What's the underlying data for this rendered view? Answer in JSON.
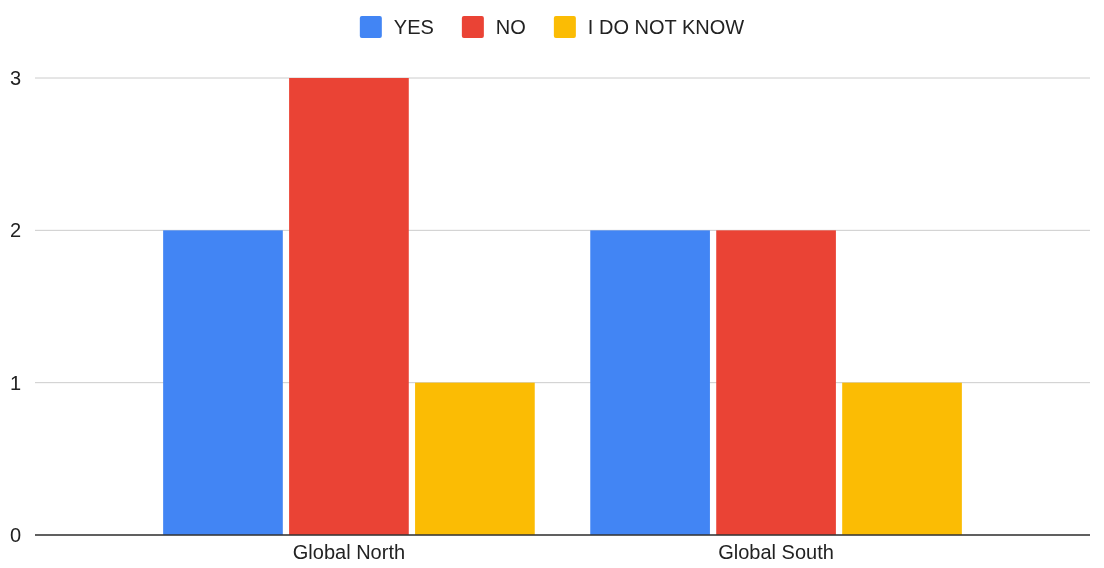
{
  "chart_data": {
    "type": "bar",
    "categories": [
      "Global North",
      "Global South"
    ],
    "series": [
      {
        "name": "YES",
        "color": "#4285f4",
        "values": [
          2,
          2
        ]
      },
      {
        "name": "NO",
        "color": "#ea4335",
        "values": [
          3,
          2
        ]
      },
      {
        "name": "I DO NOT KNOW",
        "color": "#fbbc04",
        "values": [
          1,
          1
        ]
      }
    ],
    "ylim": [
      0,
      3
    ],
    "yticks": [
      0,
      1,
      2,
      3
    ],
    "grid": "y",
    "legend": "top"
  }
}
